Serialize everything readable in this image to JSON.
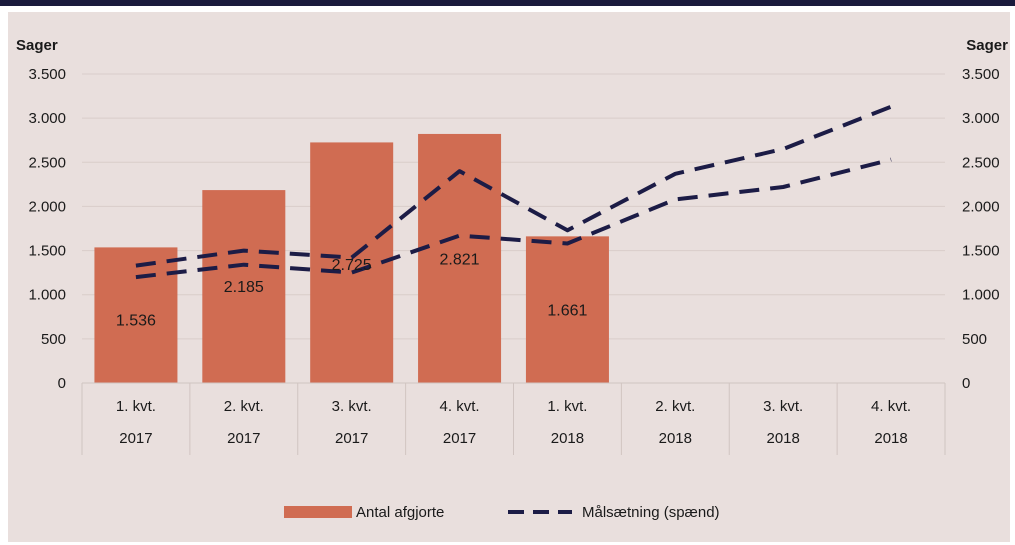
{
  "chart_data": {
    "type": "bar",
    "title": "",
    "ylabel_left": "Sager",
    "ylabel_right": "Sager",
    "ylim": [
      0,
      3500
    ],
    "yticks": [
      0,
      500,
      1000,
      1500,
      2000,
      2500,
      3000,
      3500
    ],
    "ytick_labels": [
      "0",
      "500",
      "1.000",
      "1.500",
      "2.000",
      "2.500",
      "3.000",
      "3.500"
    ],
    "categories": [
      {
        "quarter": "1. kvt.",
        "year": "2017"
      },
      {
        "quarter": "2. kvt.",
        "year": "2017"
      },
      {
        "quarter": "3. kvt.",
        "year": "2017"
      },
      {
        "quarter": "4. kvt.",
        "year": "2017"
      },
      {
        "quarter": "1. kvt.",
        "year": "2018"
      },
      {
        "quarter": "2. kvt.",
        "year": "2018"
      },
      {
        "quarter": "3. kvt.",
        "year": "2018"
      },
      {
        "quarter": "4. kvt.",
        "year": "2018"
      }
    ],
    "bars": {
      "name": "Antal afgjorte",
      "color": "#d06c52",
      "values": [
        1536,
        2185,
        2725,
        2821,
        1661,
        null,
        null,
        null
      ],
      "labels": [
        "1.536",
        "2.185",
        "2.725",
        "2.821",
        "1.661",
        "",
        "",
        ""
      ],
      "label_values": [
        720,
        1100,
        1350,
        1410,
        830,
        null,
        null,
        null
      ]
    },
    "target": {
      "name": "Målsætning (spænd)",
      "color": "#1c1c46",
      "upper": [
        1330,
        1500,
        1420,
        2400,
        1730,
        2370,
        2650,
        3130
      ],
      "lower": [
        1200,
        1340,
        1250,
        1670,
        1580,
        2080,
        2220,
        2530
      ]
    },
    "legend_position": "bottom",
    "grid": true
  }
}
